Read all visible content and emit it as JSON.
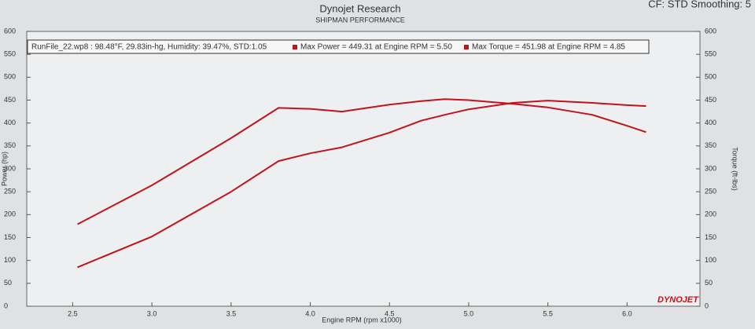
{
  "chart_data": {
    "type": "line",
    "title": "Dynojet Research",
    "subtitle": "SHIPMAN PERFORMANCE",
    "settings_label": "CF: STD Smoothing: 5",
    "run_info": "RunFile_22.wp8  : 98.48°F, 29.83in-hg, Humidity: 39.47%, STD:1.05",
    "logo": "DYNOJET",
    "x_label": "Engine RPM (rpm x1000)",
    "y_label": "Power (hp)",
    "y2_label": "Torque (ft-lbs)",
    "x": [
      2.53,
      3.0,
      3.5,
      3.8,
      4.0,
      4.2,
      4.5,
      4.7,
      4.85,
      5.0,
      5.28,
      5.5,
      5.78,
      6.0,
      6.12
    ],
    "series": [
      {
        "name": "Max Power = 449.31 at Engine RPM = 5.50",
        "color": "#c0141c",
        "axis": "y",
        "values": [
          85,
          152,
          250,
          317,
          334,
          347,
          379,
          405,
          418,
          430,
          444,
          449,
          444,
          439,
          437
        ]
      },
      {
        "name": "Max Torque = 451.98 at Engine RPM = 4.85",
        "color": "#c0141c",
        "axis": "y2",
        "values": [
          179,
          264,
          367,
          433,
          431,
          425,
          440,
          448,
          452,
          450,
          442,
          434,
          418,
          394,
          380
        ]
      }
    ],
    "xlim": [
      2.21,
      6.46
    ],
    "xticks": [
      2.5,
      {
        "value": 3,
        "label": "3.0"
      },
      3.5,
      {
        "value": 4,
        "label": "4.0"
      },
      4.5,
      {
        "value": 5,
        "label": "5.0"
      },
      5.5,
      {
        "value": 6,
        "label": "6.0"
      }
    ],
    "ylim": [
      0,
      600
    ],
    "yticks": [
      0,
      50,
      100,
      150,
      200,
      250,
      300,
      350,
      400,
      450,
      500,
      550,
      600
    ],
    "y2lim": [
      0,
      600
    ],
    "y2ticks": [
      0,
      50,
      100,
      150,
      200,
      250,
      300,
      350,
      400,
      450,
      500,
      550,
      600
    ],
    "grid": false
  }
}
